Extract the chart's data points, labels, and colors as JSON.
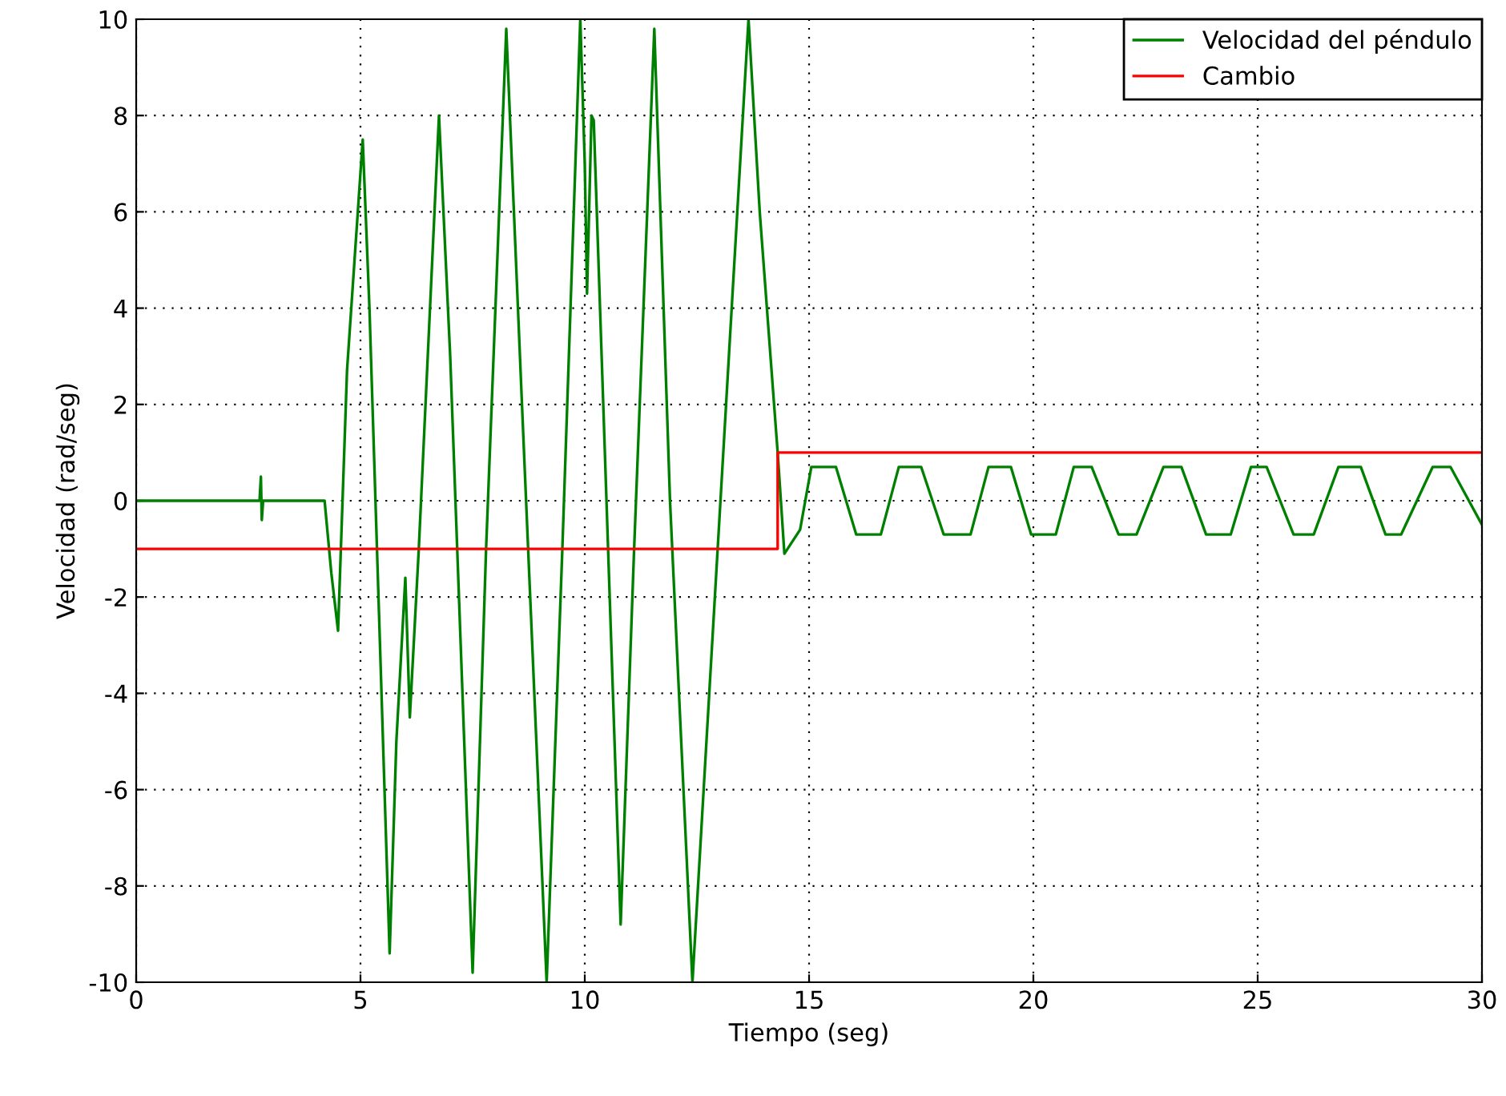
{
  "chart_data": {
    "type": "line",
    "xlabel": "Tiempo (seg)",
    "ylabel": "Velocidad (rad/seg)",
    "xlim": [
      0,
      30
    ],
    "ylim": [
      -10,
      10
    ],
    "xticks": [
      0,
      5,
      10,
      15,
      20,
      25,
      30
    ],
    "yticks": [
      -10,
      -8,
      -6,
      -4,
      -2,
      0,
      2,
      4,
      6,
      8,
      10
    ],
    "grid": true,
    "legend": "top right",
    "line_style": "solid",
    "marker": "none",
    "series": [
      {
        "name": "Velocidad del péndulo",
        "color": "#008000",
        "x": [
          0,
          2.75,
          2.78,
          2.8,
          2.83,
          4.2,
          4.35,
          4.5,
          4.7,
          5.05,
          5.2,
          5.65,
          5.8,
          6.0,
          6.1,
          6.3,
          6.75,
          7.0,
          7.5,
          7.8,
          8.25,
          8.6,
          9.15,
          9.5,
          9.9,
          10.0,
          10.05,
          10.15,
          10.2,
          10.8,
          11.1,
          11.55,
          11.9,
          12.4,
          12.9,
          13.65,
          13.9,
          14.3,
          14.45,
          14.8,
          15.05,
          15.6,
          16.05,
          16.6,
          17.0,
          17.5,
          18.0,
          18.6,
          19.0,
          19.5,
          19.95,
          20.5,
          20.9,
          21.3,
          21.9,
          22.3,
          22.9,
          23.3,
          23.85,
          24.4,
          24.85,
          25.2,
          25.8,
          26.25,
          26.8,
          27.3,
          27.85,
          28.2,
          28.9,
          29.3,
          30
        ],
        "values": [
          0,
          0,
          0.5,
          -0.4,
          0,
          0,
          -1.5,
          -2.7,
          2.7,
          7.5,
          4,
          -9.4,
          -5,
          -1.6,
          -4.5,
          -1,
          8,
          3,
          -9.8,
          -1,
          9.8,
          2,
          -10,
          -1,
          10,
          7,
          4.3,
          8,
          7.9,
          -8.8,
          -1,
          9.8,
          0,
          -10,
          -2,
          10,
          6,
          1,
          -1.1,
          -0.6,
          0.7,
          0.7,
          -0.7,
          -0.7,
          0.7,
          0.7,
          -0.7,
          -0.7,
          0.7,
          0.7,
          -0.7,
          -0.7,
          0.7,
          0.7,
          -0.7,
          -0.7,
          0.7,
          0.7,
          -0.7,
          -0.7,
          0.7,
          0.7,
          -0.7,
          -0.7,
          0.7,
          0.7,
          -0.7,
          -0.7,
          0.7,
          0.7,
          -0.5
        ]
      },
      {
        "name": "Cambio",
        "color": "#ff0000",
        "type": "step",
        "x": [
          0,
          14.3,
          30
        ],
        "values": [
          -1,
          1,
          1
        ]
      }
    ]
  }
}
